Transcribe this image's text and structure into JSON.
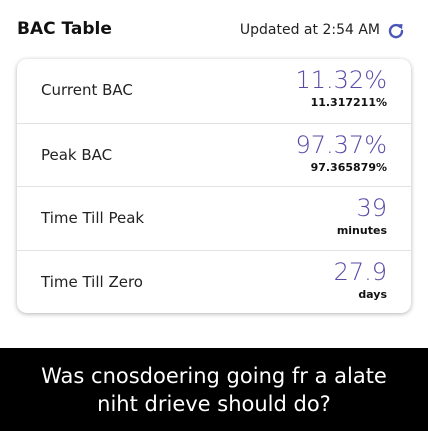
{
  "header": {
    "title": "BAC Table",
    "updated": "Updated at 2:54 AM"
  },
  "rows": [
    {
      "label": "Current BAC",
      "value": "11.32%",
      "detail": "11.317211%"
    },
    {
      "label": "Peak BAC",
      "value": "97.37%",
      "detail": "97.365879%"
    },
    {
      "label": "Time Till Peak",
      "value": "39",
      "detail": "minutes"
    },
    {
      "label": "Time Till Zero",
      "value": "27.9",
      "detail": "days"
    }
  ],
  "caption": {
    "lines": [
      "Was cnosdoering going fr a alate",
      "niht drieve should do?"
    ]
  }
}
